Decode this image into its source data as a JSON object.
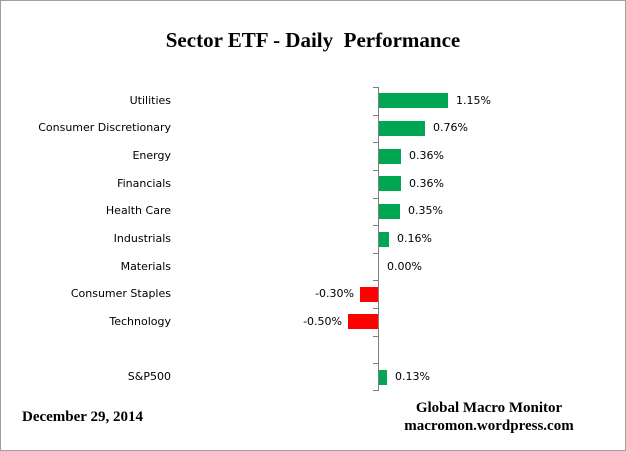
{
  "chart_data": {
    "type": "bar",
    "orientation": "horizontal",
    "title": "Sector ETF - Daily  Performance",
    "categories": [
      "Utilities",
      "Consumer Discretionary",
      "Energy",
      "Financials",
      "Health Care",
      "Industrials",
      "Materials",
      "Consumer Staples",
      "Technology",
      "",
      "S&P500"
    ],
    "values": [
      1.15,
      0.76,
      0.36,
      0.36,
      0.35,
      0.16,
      0.0,
      -0.3,
      -0.5,
      null,
      0.13
    ],
    "value_labels": [
      "1.15%",
      "0.76%",
      "0.36%",
      "0.36%",
      "0.35%",
      "0.16%",
      "0.00%",
      "-0.30%",
      "-0.50%",
      "",
      "0.13%"
    ],
    "unit": "%",
    "baseline": 0,
    "grid": false,
    "legend": false,
    "x_axis_labels_shown": false,
    "colors": {
      "positive": "#00A651",
      "negative": "#FF0000",
      "axis": "#7F7F7F",
      "text": "#000000"
    }
  },
  "footer": {
    "date": "December 29, 2014",
    "source_line1": "Global Macro Monitor",
    "source_line2": "macromon.wordpress.com"
  }
}
